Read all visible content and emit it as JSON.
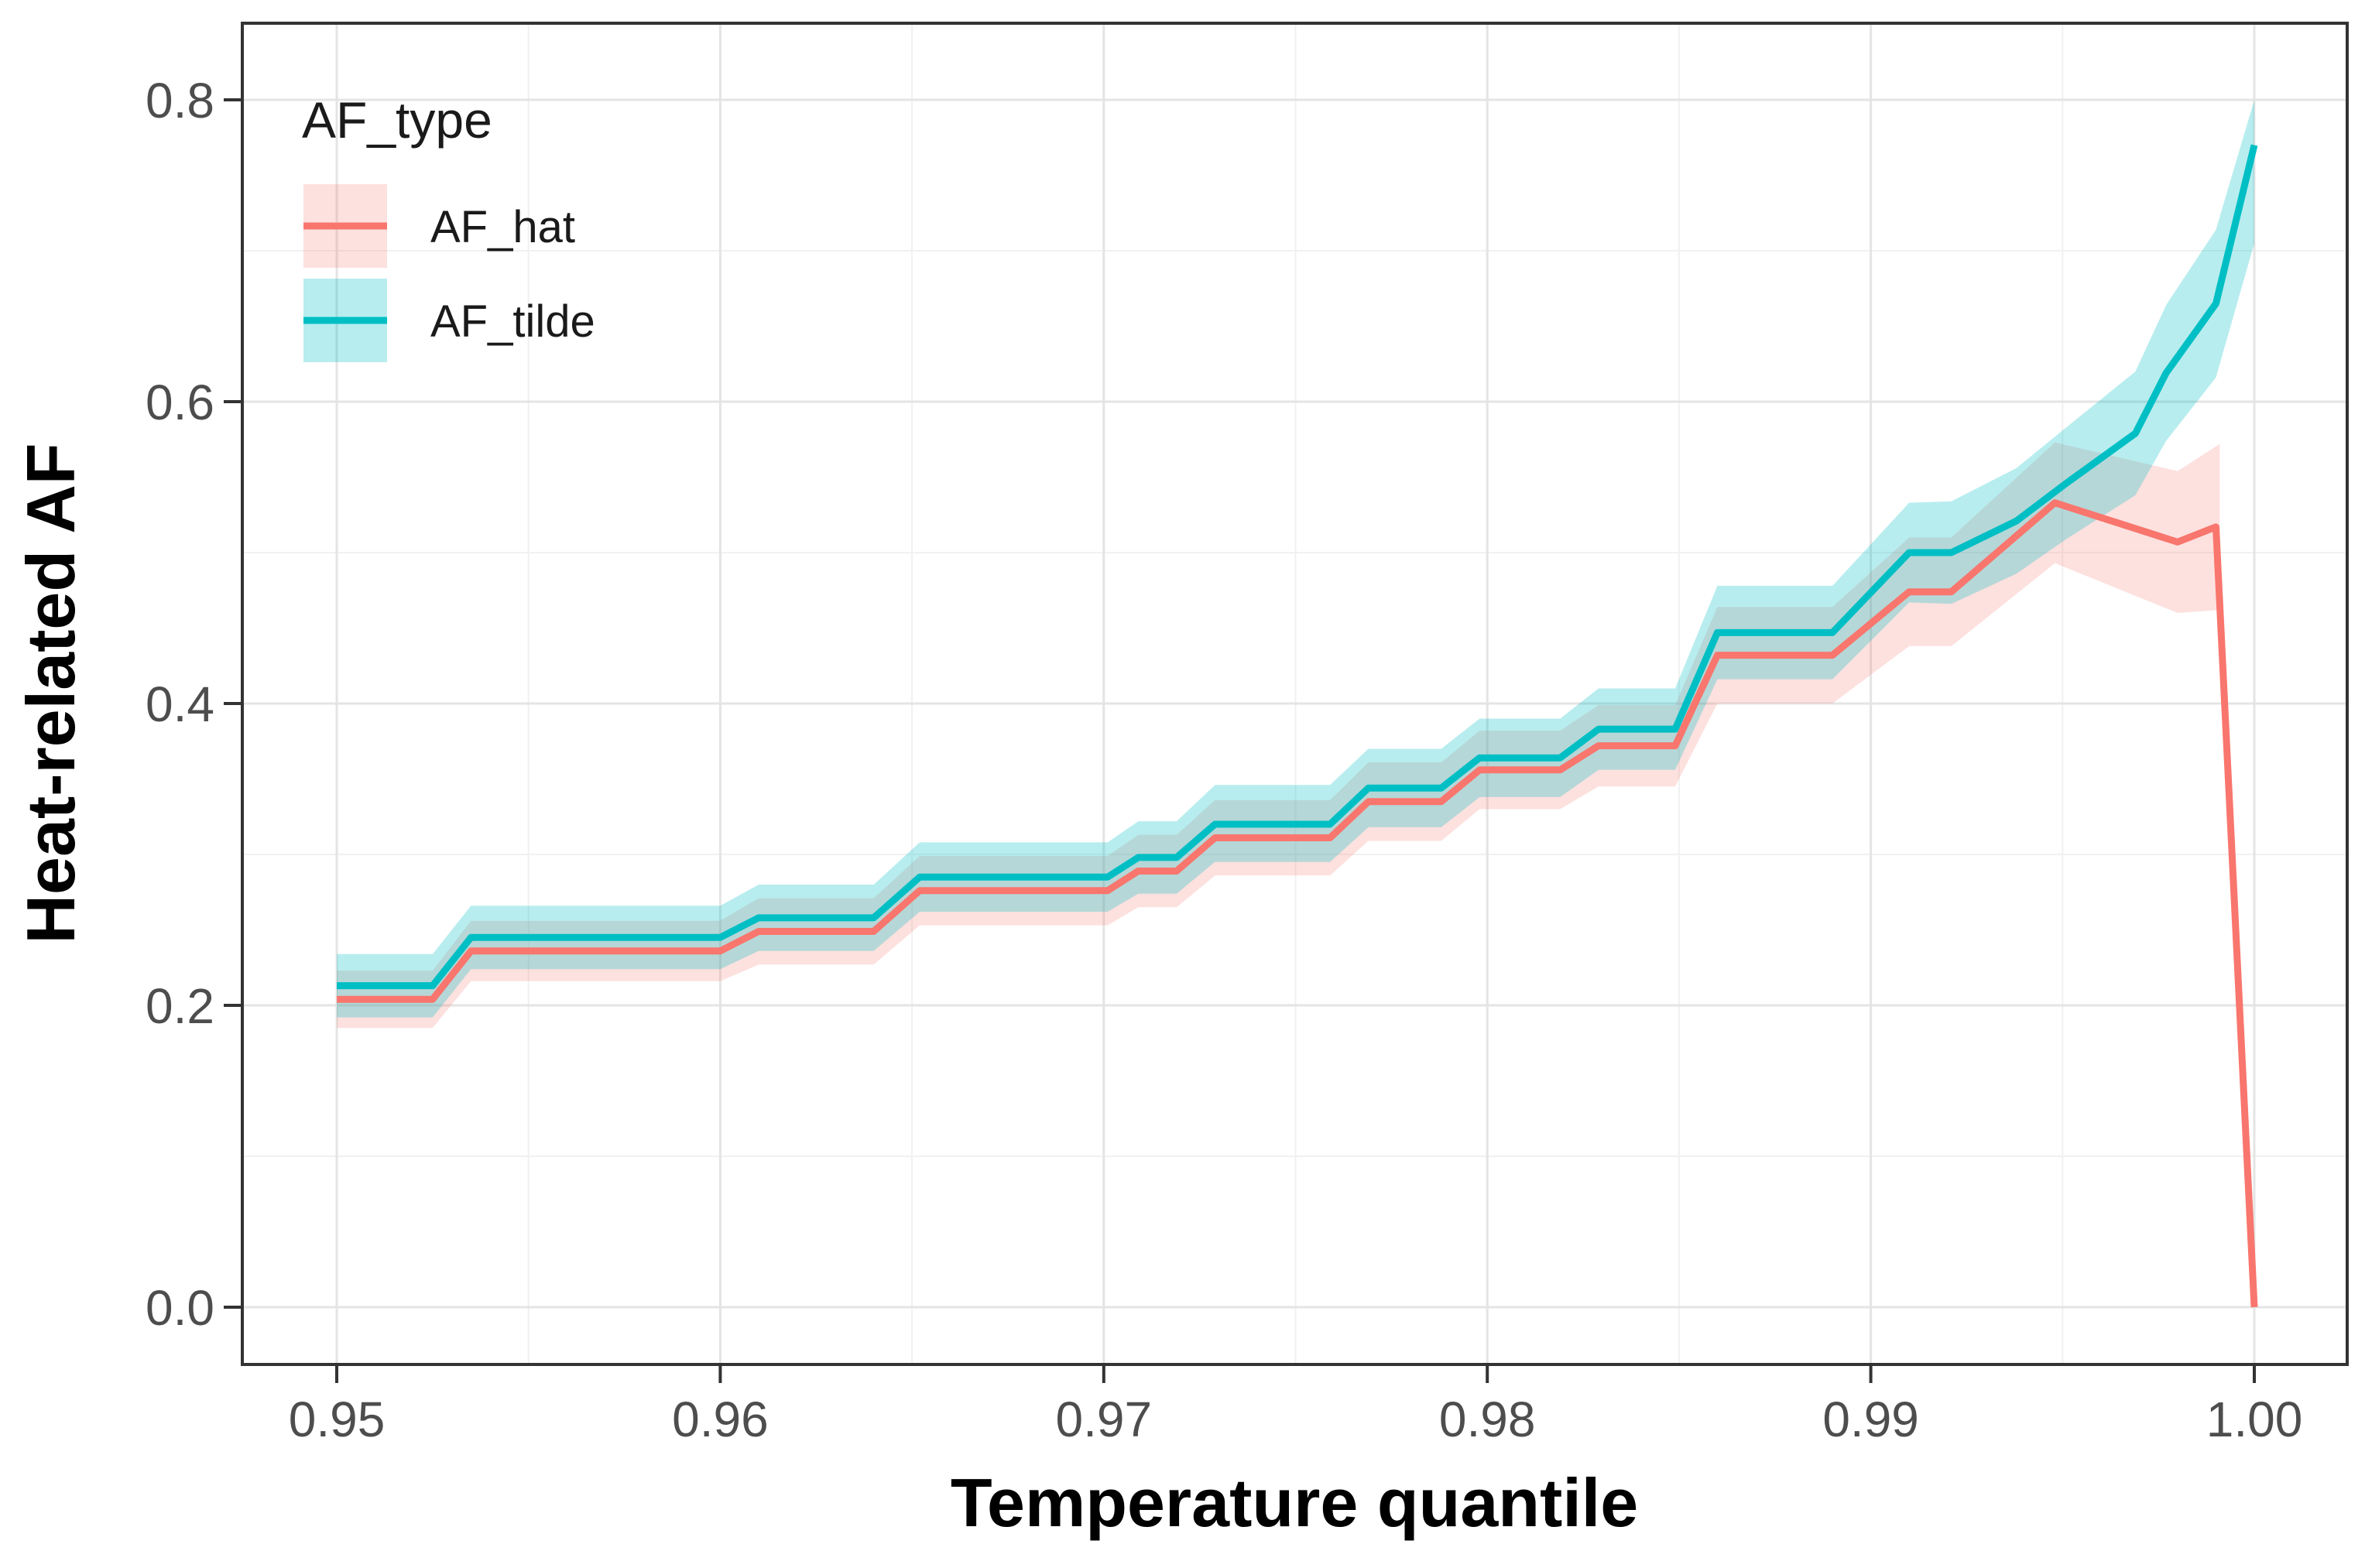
{
  "chart_data": {
    "type": "line",
    "title": "",
    "xlabel": "Temperature quantile",
    "ylabel": "Heat-related AF",
    "x_axis": {
      "ticks": [
        0.95,
        0.96,
        0.97,
        0.98,
        0.99,
        1.0
      ],
      "tick_labels": [
        "0.95",
        "0.96",
        "0.97",
        "0.98",
        "0.99",
        "1.00"
      ],
      "minor_ticks": [
        0.955,
        0.965,
        0.975,
        0.985,
        0.995
      ],
      "range": [
        0.9475,
        1.0025
      ]
    },
    "y_axis": {
      "ticks": [
        0.0,
        0.2,
        0.4,
        0.6,
        0.8
      ],
      "tick_labels": [
        "0.0",
        "0.2",
        "0.4",
        "0.6",
        "0.8"
      ],
      "minor_ticks": [
        0.1,
        0.3,
        0.5,
        0.7
      ],
      "range": [
        -0.038,
        0.851
      ]
    },
    "grid": {
      "major_color": "#E4E4E4",
      "minor_color": "#F1F1F1",
      "panel_border_color": "#333333",
      "tick_color": "#333333",
      "background": "#FFFFFF"
    },
    "legend": {
      "title": "AF_type",
      "position": "top-left-inside"
    },
    "series": [
      {
        "name": "AF_hat",
        "color": "#F8766D",
        "ribbon_color": "rgba(248,118,109,0.22)",
        "points": [
          [
            0.95,
            0.204
          ],
          [
            0.9525,
            0.204
          ],
          [
            0.9535,
            0.236
          ],
          [
            0.96,
            0.236
          ],
          [
            0.961,
            0.249
          ],
          [
            0.964,
            0.249
          ],
          [
            0.9652,
            0.276
          ],
          [
            0.9701,
            0.276
          ],
          [
            0.9709,
            0.289
          ],
          [
            0.9719,
            0.289
          ],
          [
            0.9729,
            0.311
          ],
          [
            0.9759,
            0.311
          ],
          [
            0.9769,
            0.335
          ],
          [
            0.9788,
            0.335
          ],
          [
            0.9798,
            0.356
          ],
          [
            0.9819,
            0.356
          ],
          [
            0.9829,
            0.372
          ],
          [
            0.9849,
            0.372
          ],
          [
            0.986,
            0.432
          ],
          [
            0.989,
            0.432
          ],
          [
            0.991,
            0.474
          ],
          [
            0.9921,
            0.474
          ],
          [
            0.9948,
            0.533
          ],
          [
            0.998,
            0.507
          ],
          [
            0.999,
            0.517
          ],
          [
            1.0,
            0.0
          ]
        ],
        "ribbon": [
          [
            0.95,
            0.185,
            0.223
          ],
          [
            0.9525,
            0.185,
            0.223
          ],
          [
            0.9535,
            0.216,
            0.256
          ],
          [
            0.96,
            0.216,
            0.256
          ],
          [
            0.961,
            0.227,
            0.271
          ],
          [
            0.964,
            0.227,
            0.271
          ],
          [
            0.9652,
            0.253,
            0.299
          ],
          [
            0.9701,
            0.253,
            0.299
          ],
          [
            0.9709,
            0.265,
            0.313
          ],
          [
            0.9719,
            0.265,
            0.313
          ],
          [
            0.9729,
            0.286,
            0.336
          ],
          [
            0.9759,
            0.286,
            0.336
          ],
          [
            0.9769,
            0.309,
            0.361
          ],
          [
            0.9788,
            0.309,
            0.361
          ],
          [
            0.9798,
            0.33,
            0.382
          ],
          [
            0.9819,
            0.33,
            0.382
          ],
          [
            0.9829,
            0.345,
            0.399
          ],
          [
            0.9849,
            0.345,
            0.399
          ],
          [
            0.986,
            0.4,
            0.464
          ],
          [
            0.989,
            0.4,
            0.464
          ],
          [
            0.991,
            0.438,
            0.51
          ],
          [
            0.9921,
            0.438,
            0.51
          ],
          [
            0.9948,
            0.493,
            0.573
          ],
          [
            0.998,
            0.46,
            0.554
          ],
          [
            0.9991,
            0.462,
            0.572
          ]
        ]
      },
      {
        "name": "AF_tilde",
        "color": "#00BFC4",
        "ribbon_color": "rgba(0,191,196,0.28)",
        "points": [
          [
            0.95,
            0.213
          ],
          [
            0.9525,
            0.213
          ],
          [
            0.9535,
            0.245
          ],
          [
            0.96,
            0.245
          ],
          [
            0.961,
            0.258
          ],
          [
            0.964,
            0.258
          ],
          [
            0.9652,
            0.285
          ],
          [
            0.9701,
            0.285
          ],
          [
            0.9709,
            0.298
          ],
          [
            0.9719,
            0.298
          ],
          [
            0.9729,
            0.32
          ],
          [
            0.9759,
            0.32
          ],
          [
            0.9769,
            0.344
          ],
          [
            0.9788,
            0.344
          ],
          [
            0.9798,
            0.364
          ],
          [
            0.9819,
            0.364
          ],
          [
            0.9829,
            0.383
          ],
          [
            0.9849,
            0.383
          ],
          [
            0.986,
            0.447
          ],
          [
            0.989,
            0.447
          ],
          [
            0.991,
            0.5
          ],
          [
            0.9921,
            0.5
          ],
          [
            0.9938,
            0.521
          ],
          [
            0.9951,
            0.546
          ],
          [
            0.9969,
            0.579
          ],
          [
            0.9977,
            0.619
          ],
          [
            0.999,
            0.665
          ],
          [
            1.0,
            0.77
          ]
        ],
        "ribbon": [
          [
            0.95,
            0.192,
            0.234
          ],
          [
            0.9525,
            0.192,
            0.234
          ],
          [
            0.9535,
            0.224,
            0.266
          ],
          [
            0.96,
            0.224,
            0.266
          ],
          [
            0.961,
            0.236,
            0.28
          ],
          [
            0.964,
            0.236,
            0.28
          ],
          [
            0.9652,
            0.262,
            0.308
          ],
          [
            0.9701,
            0.262,
            0.308
          ],
          [
            0.9709,
            0.274,
            0.322
          ],
          [
            0.9719,
            0.274,
            0.322
          ],
          [
            0.9729,
            0.295,
            0.346
          ],
          [
            0.9759,
            0.295,
            0.346
          ],
          [
            0.9769,
            0.318,
            0.37
          ],
          [
            0.9788,
            0.318,
            0.37
          ],
          [
            0.9798,
            0.338,
            0.39
          ],
          [
            0.9819,
            0.338,
            0.39
          ],
          [
            0.9829,
            0.356,
            0.41
          ],
          [
            0.9849,
            0.356,
            0.41
          ],
          [
            0.986,
            0.416,
            0.478
          ],
          [
            0.989,
            0.416,
            0.478
          ],
          [
            0.991,
            0.467,
            0.533
          ],
          [
            0.9921,
            0.466,
            0.534
          ],
          [
            0.9938,
            0.486,
            0.556
          ],
          [
            0.9951,
            0.509,
            0.583
          ],
          [
            0.9969,
            0.538,
            0.62
          ],
          [
            0.9977,
            0.574,
            0.664
          ],
          [
            0.999,
            0.616,
            0.714
          ],
          [
            1.0,
            0.705,
            0.8
          ]
        ]
      }
    ]
  }
}
